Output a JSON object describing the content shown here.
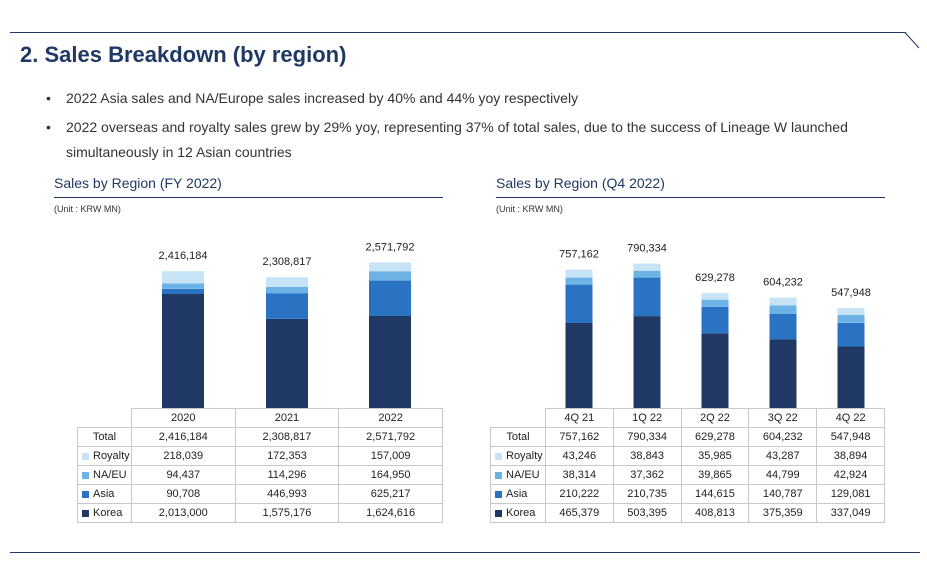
{
  "page": {
    "title": "2. Sales Breakdown (by region)",
    "bullets": [
      "2022 Asia sales and NA/Europe sales increased by 40% and 44% yoy respectively",
      "2022 overseas and royalty sales grew by 29% yoy, representing 37% of total sales, due to the success of Lineage W launched simultaneously in 12 Asian countries"
    ]
  },
  "colors": {
    "korea": "#1f3864",
    "asia": "#2a73c2",
    "naeu": "#6db2e4",
    "royalty": "#c6e4f6",
    "accent": "#1f3864"
  },
  "chart_data": [
    {
      "type": "bar",
      "stacked": true,
      "title": "Sales by Region (FY 2022)",
      "unit": "(Unit : KRW MN)",
      "categories": [
        "2020",
        "2021",
        "2022"
      ],
      "series": [
        {
          "name": "Royalty",
          "values": [
            218039,
            172353,
            157009
          ]
        },
        {
          "name": "NA/EU",
          "values": [
            94437,
            114296,
            164950
          ]
        },
        {
          "name": "Asia",
          "values": [
            90708,
            446993,
            625217
          ]
        },
        {
          "name": "Korea",
          "values": [
            2013000,
            1575176,
            1624616
          ]
        }
      ],
      "totals": [
        2416184,
        2308817,
        2571792
      ],
      "total_labels": [
        "2,416,184",
        "2,308,817",
        "2,571,792"
      ],
      "table": {
        "total_label": "Total",
        "header": [
          "2020",
          "2021",
          "2022"
        ],
        "rows": [
          {
            "label": "Total",
            "values": [
              "2,416,184",
              "2,308,817",
              "2,571,792"
            ]
          },
          {
            "label": "Royalty",
            "values": [
              "218,039",
              "172,353",
              "157,009"
            ]
          },
          {
            "label": "NA/EU",
            "values": [
              "94,437",
              "114,296",
              "164,950"
            ]
          },
          {
            "label": "Asia",
            "values": [
              "90,708",
              "446,993",
              "625,217"
            ]
          },
          {
            "label": "Korea",
            "values": [
              "2,013,000",
              "1,575,176",
              "1,624,616"
            ]
          }
        ]
      }
    },
    {
      "type": "bar",
      "stacked": true,
      "title": "Sales by Region (Q4 2022)",
      "unit": "(Unit : KRW MN)",
      "categories": [
        "4Q 21",
        "1Q 22",
        "2Q 22",
        "3Q 22",
        "4Q 22"
      ],
      "series": [
        {
          "name": "Royalty",
          "values": [
            43246,
            38843,
            35985,
            43287,
            38894
          ]
        },
        {
          "name": "NA/EU",
          "values": [
            38314,
            37362,
            39865,
            44799,
            42924
          ]
        },
        {
          "name": "Asia",
          "values": [
            210222,
            210735,
            144615,
            140787,
            129081
          ]
        },
        {
          "name": "Korea",
          "values": [
            465379,
            503395,
            408813,
            375359,
            337049
          ]
        }
      ],
      "totals": [
        757162,
        790334,
        629278,
        604232,
        547948
      ],
      "total_labels": [
        "757,162",
        "790,334",
        "629,278",
        "604,232",
        "547,948"
      ],
      "table": {
        "total_label": "Total",
        "header": [
          "4Q 21",
          "1Q 22",
          "2Q 22",
          "3Q 22",
          "4Q 22"
        ],
        "rows": [
          {
            "label": "Total",
            "values": [
              "757,162",
              "790,334",
              "629,278",
              "604,232",
              "547,948"
            ]
          },
          {
            "label": "Royalty",
            "values": [
              "43,246",
              "38,843",
              "35,985",
              "43,287",
              "38,894"
            ]
          },
          {
            "label": "NA/EU",
            "values": [
              "38,314",
              "37,362",
              "39,865",
              "44,799",
              "42,924"
            ]
          },
          {
            "label": "Asia",
            "values": [
              "210,222",
              "210,735",
              "144,615",
              "140,787",
              "129,081"
            ]
          },
          {
            "label": "Korea",
            "values": [
              "465,379",
              "503,395",
              "408,813",
              "375,359",
              "337,049"
            ]
          }
        ]
      }
    }
  ]
}
